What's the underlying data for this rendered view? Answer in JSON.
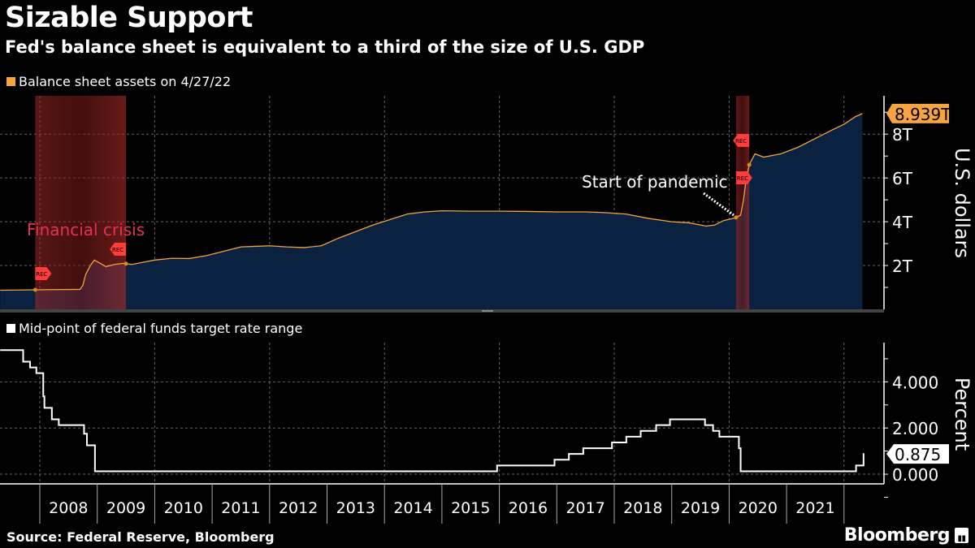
{
  "header": {
    "title": "Sizable Support",
    "subtitle": "Fed's balance sheet is equivalent to a third of the size of U.S. GDP"
  },
  "footer": {
    "source": "Source: Federal Reserve, Bloomberg",
    "brand": "Bloomberg"
  },
  "colors": {
    "balance_sheet_line": "#f5a33b",
    "balance_sheet_area": "#0a2240",
    "recession_shade": "#8b1e1e",
    "fed_funds_line": "#ffffff",
    "annotation_red": "#e8304f"
  },
  "chart_data": [
    {
      "type": "area",
      "legend": "Balance sheet assets on 4/27/22",
      "ylabel": "U.S. dollars",
      "ylim": [
        0,
        9.75
      ],
      "yticks": [
        {
          "v": 2,
          "label": "2T"
        },
        {
          "v": 4,
          "label": "4T"
        },
        {
          "v": 6,
          "label": "6T"
        },
        {
          "v": 8,
          "label": "8T"
        }
      ],
      "last_value_label": "8.939T",
      "last_value": 8.939,
      "grid": true,
      "recessions": [
        [
          2007.92,
          2009.5
        ],
        [
          2020.12,
          2020.35
        ]
      ],
      "rec_marker": "REC",
      "annotations": [
        {
          "text": "Financial crisis"
        },
        {
          "text": "Start of pandemic"
        }
      ],
      "x": [
        2007.31,
        2007.9,
        2008.2,
        2008.7,
        2008.75,
        2008.8,
        2008.88,
        2008.95,
        2009.05,
        2009.15,
        2009.3,
        2009.45,
        2009.6,
        2009.8,
        2010.0,
        2010.3,
        2010.6,
        2010.9,
        2011.2,
        2011.5,
        2011.8,
        2012.0,
        2012.3,
        2012.6,
        2012.9,
        2013.2,
        2013.5,
        2013.8,
        2014.1,
        2014.4,
        2014.7,
        2015.0,
        2015.5,
        2016.0,
        2016.5,
        2017.0,
        2017.5,
        2017.8,
        2018.2,
        2018.6,
        2019.0,
        2019.3,
        2019.6,
        2019.75,
        2019.9,
        2020.1,
        2020.2,
        2020.25,
        2020.3,
        2020.35,
        2020.45,
        2020.6,
        2020.9,
        2021.2,
        2021.5,
        2021.8,
        2022.0,
        2022.2,
        2022.32
      ],
      "y": [
        0.87,
        0.89,
        0.9,
        0.91,
        1.1,
        1.6,
        2.0,
        2.25,
        2.1,
        1.95,
        2.05,
        2.1,
        2.05,
        2.15,
        2.25,
        2.33,
        2.32,
        2.45,
        2.65,
        2.85,
        2.88,
        2.9,
        2.85,
        2.82,
        2.9,
        3.25,
        3.55,
        3.85,
        4.1,
        4.35,
        4.45,
        4.5,
        4.48,
        4.48,
        4.47,
        4.45,
        4.45,
        4.42,
        4.35,
        4.15,
        4.0,
        3.95,
        3.8,
        3.85,
        4.05,
        4.17,
        4.3,
        5.0,
        6.0,
        6.6,
        7.1,
        6.95,
        7.1,
        7.4,
        7.8,
        8.2,
        8.45,
        8.8,
        8.939
      ]
    },
    {
      "type": "line",
      "step": true,
      "legend": "Mid-point of federal funds target rate range",
      "ylabel": "Percent",
      "ylim": [
        -0.42,
        5.7
      ],
      "yticks": [
        {
          "v": 0,
          "label": "0.000"
        },
        {
          "v": 2,
          "label": "2.000"
        },
        {
          "v": 4,
          "label": "4.000"
        }
      ],
      "last_value_label": "0.875",
      "last_value": 0.875,
      "grid": true,
      "x": [
        2007.31,
        2007.71,
        2007.83,
        2007.94,
        2008.06,
        2008.08,
        2008.21,
        2008.33,
        2008.77,
        2008.82,
        2008.96,
        2015.96,
        2016.96,
        2017.21,
        2017.46,
        2017.96,
        2018.21,
        2018.46,
        2018.73,
        2018.97,
        2019.58,
        2019.72,
        2019.83,
        2020.17,
        2020.2,
        2022.21,
        2022.34,
        2022.35
      ],
      "y": [
        5.375,
        4.875,
        4.625,
        4.375,
        3.375,
        2.875,
        2.375,
        2.125,
        1.75,
        1.25,
        0.125,
        0.375,
        0.625,
        0.875,
        1.125,
        1.375,
        1.625,
        1.875,
        2.125,
        2.375,
        2.125,
        1.875,
        1.625,
        1.125,
        0.125,
        0.375,
        0.875,
        0.875
      ]
    }
  ],
  "x_axis": {
    "years": [
      "2008",
      "2009",
      "2010",
      "2011",
      "2012",
      "2013",
      "2014",
      "2015",
      "2016",
      "2017",
      "2018",
      "2019",
      "2020",
      "2021"
    ]
  }
}
